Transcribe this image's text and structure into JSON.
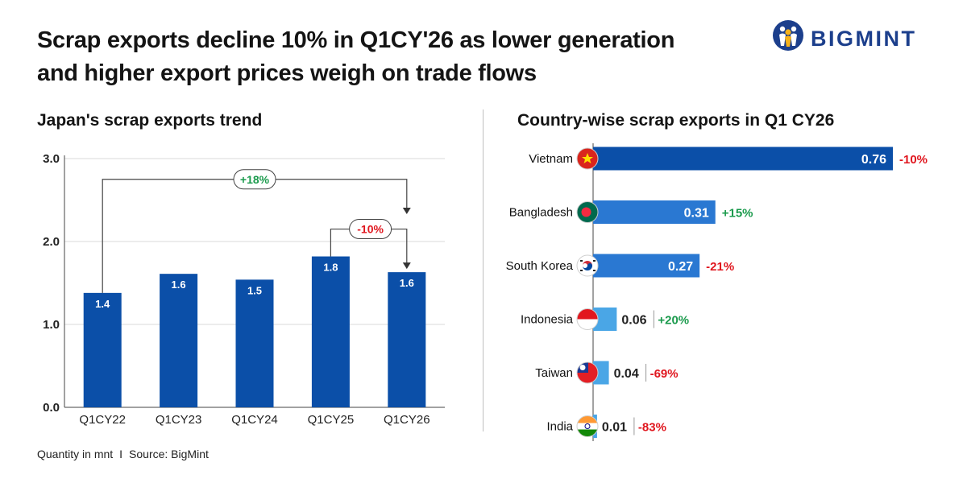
{
  "header": {
    "title_line1": "Scrap exports decline 10% in Q1CY'26 as lower generation",
    "title_line2": "and higher export prices weigh on trade flows",
    "brand": "BIGMINT"
  },
  "footer": {
    "unit": "Quantity in mnt",
    "separator": "I",
    "source": "Source: BigMint"
  },
  "colors": {
    "bar_dark": "#0b4fa8",
    "bar_mid": "#2a78d2",
    "bar_light": "#4aa6e6",
    "positive": "#1a9a4c",
    "negative": "#e0161e",
    "brand": "#1c3f8c"
  },
  "chart_data": [
    {
      "type": "bar",
      "title": "Japan's scrap exports trend",
      "categories": [
        "Q1CY22",
        "Q1CY23",
        "Q1CY24",
        "Q1CY25",
        "Q1CY26"
      ],
      "values": [
        1.38,
        1.61,
        1.54,
        1.82,
        1.63
      ],
      "value_labels": [
        "1.4",
        "1.6",
        "1.5",
        "1.8",
        "1.6"
      ],
      "ylim": [
        0,
        3
      ],
      "yticks": [
        "0.0",
        "1.0",
        "2.0",
        "3.0"
      ],
      "grid": true,
      "annotations": [
        {
          "label": "+18%",
          "from": "Q1CY22",
          "to": "Q1CY26",
          "sentiment": "positive"
        },
        {
          "label": "-10%",
          "from": "Q1CY25",
          "to": "Q1CY26",
          "sentiment": "negative"
        }
      ]
    },
    {
      "type": "bar",
      "orientation": "horizontal",
      "title": "Country-wise scrap exports in Q1 CY26",
      "categories": [
        "Vietnam",
        "Bangladesh",
        "South Korea",
        "Indonesia",
        "Taiwan",
        "India"
      ],
      "values": [
        0.76,
        0.31,
        0.27,
        0.06,
        0.04,
        0.01
      ],
      "value_labels": [
        "0.76",
        "0.31",
        "0.27",
        "0.06",
        "0.04",
        "0.01"
      ],
      "changes": [
        "-10%",
        "+15%",
        "-21%",
        "+20%",
        "-69%",
        "-83%"
      ],
      "flag_icons": [
        "vietnam-flag-icon",
        "bangladesh-flag-icon",
        "south-korea-flag-icon",
        "indonesia-flag-icon",
        "taiwan-flag-icon",
        "india-flag-icon"
      ],
      "xlim": [
        0,
        0.8
      ]
    }
  ]
}
